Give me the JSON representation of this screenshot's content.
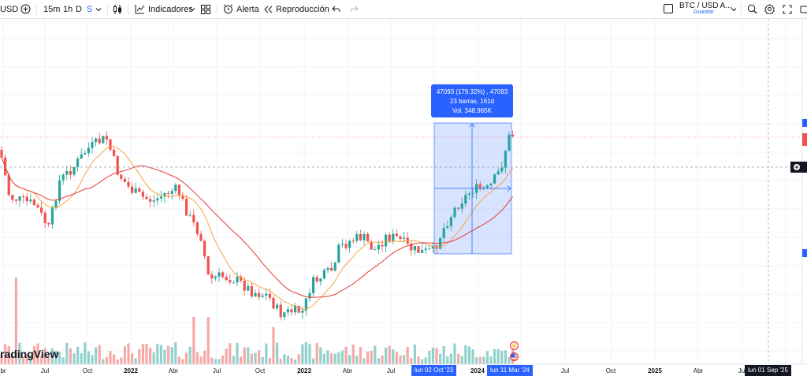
{
  "toolbar": {
    "symbol_partial": "USD",
    "timeframes": [
      "15m",
      "1h",
      "D",
      "S"
    ],
    "active_timeframe": "S",
    "indicators_label": "Indicadores",
    "alert_label": "Alerta",
    "replay_label": "Reproducción",
    "pair_label": "BTC / USD A...",
    "save_label": "Guardar"
  },
  "watermark": "radingView",
  "tooltip": {
    "line1": "47093 (179.32%) , 47093",
    "line2": "23 barras, 161d",
    "line3": "Vol. 348.965K"
  },
  "x_axis": {
    "labels": [
      "br",
      "Jul",
      "Oct",
      "2022",
      "Abr",
      "Jul",
      "Oct",
      "2023",
      "Abr",
      "Jul",
      "2024",
      "Jul",
      "Oct",
      "2025",
      "Abr",
      "Ju"
    ],
    "range_start_badge": "lun 02 Oct '23",
    "range_end_badge": "lun 11 Mar '24",
    "crosshair_badge": "lun 01 Sep '25"
  },
  "events": [
    "lightning-icon",
    "us-flag-icon"
  ],
  "colors": {
    "up": "#26a69a",
    "down": "#ef5350",
    "accent": "#2962ff",
    "ma_fast": "#f7a440",
    "ma_slow": "#e53935",
    "selection_fill": "rgba(41,98,255,0.2)"
  }
}
